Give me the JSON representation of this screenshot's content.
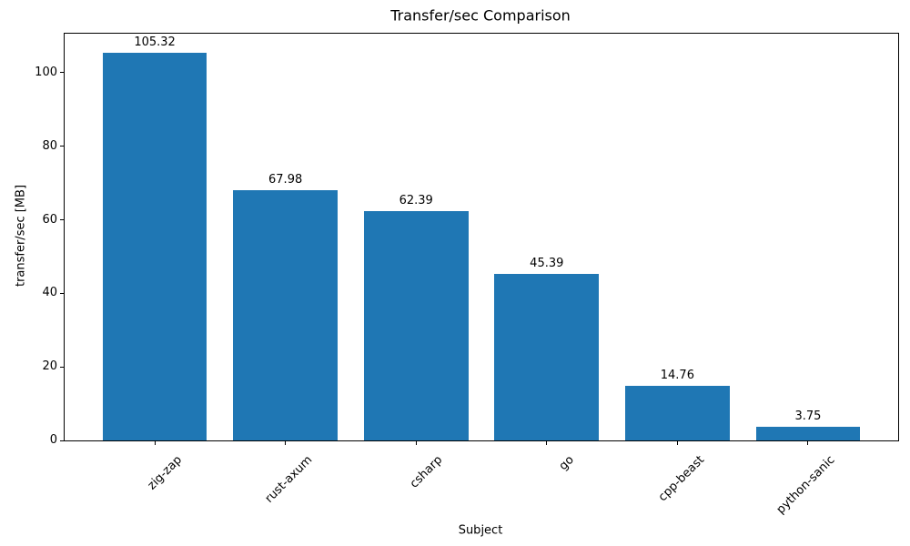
{
  "chart_data": {
    "type": "bar",
    "title": "Transfer/sec Comparison",
    "xlabel": "Subject",
    "ylabel": "transfer/sec [MB]",
    "categories": [
      "zig-zap",
      "rust-axum",
      "csharp",
      "go",
      "cpp-beast",
      "python-sanic"
    ],
    "values": [
      105.32,
      67.98,
      62.39,
      45.39,
      14.76,
      3.75
    ],
    "value_labels": [
      "105.32",
      "67.98",
      "62.39",
      "45.39",
      "14.76",
      "3.75"
    ],
    "yticks": [
      0,
      20,
      40,
      60,
      80,
      100
    ],
    "ylim": [
      0,
      110.6
    ],
    "bar_color": "#1f77b4",
    "background_color": "#ffffff",
    "grid": false,
    "legend": false,
    "x_tick_rotation_deg": 45
  }
}
